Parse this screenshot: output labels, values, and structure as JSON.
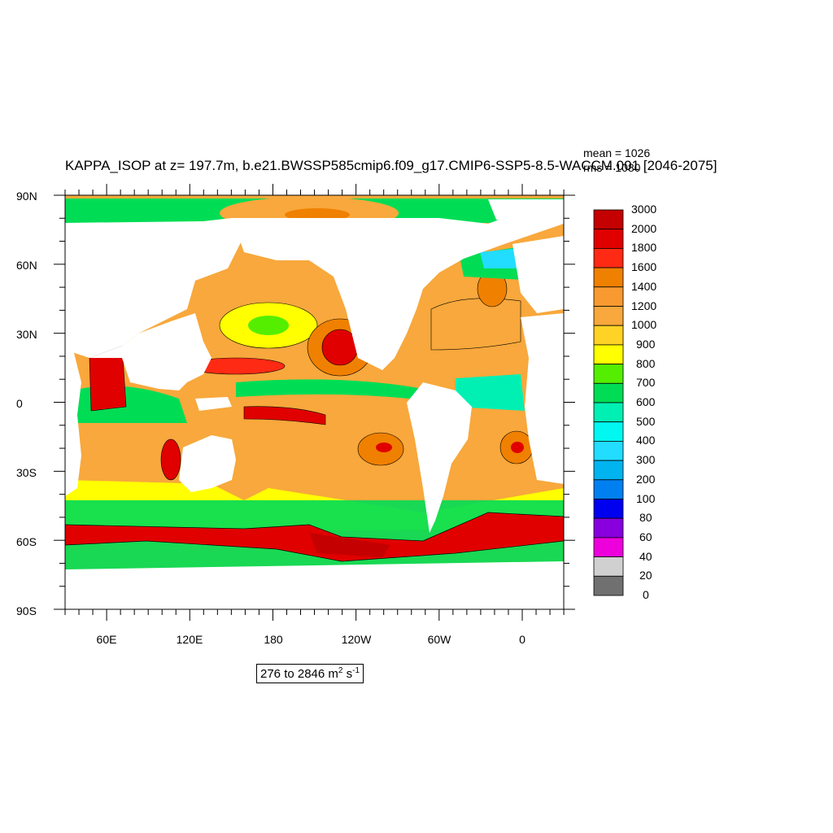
{
  "title": "KAPPA_ISOP at z= 197.7m, b.e21.BWSSP585cmip6.f09_g17.CMIP6-SSP5-8.5-WACCM.001 [2046-2075]",
  "stats": {
    "mean": "mean = 1026",
    "rms": "rms = 1080"
  },
  "range": {
    "prefix": "276 to 2846 m",
    "exp1": "2",
    "mid": " s",
    "exp2": "-1"
  },
  "lat_ticks": [
    "90N",
    "60N",
    "30N",
    "0",
    "30S",
    "60S",
    "90S"
  ],
  "lon_ticks": [
    "60E",
    "120E",
    "180",
    "120W",
    "60W",
    "0"
  ],
  "colorbar": {
    "levels": [
      "3000",
      "2000",
      "1800",
      "1600",
      "1400",
      "1200",
      "1000",
      "900",
      "800",
      "700",
      "600",
      "500",
      "400",
      "300",
      "200",
      "100",
      "80",
      "60",
      "40",
      "20",
      "0"
    ],
    "colors": [
      "#c40000",
      "#e00000",
      "#ff2a14",
      "#f08000",
      "#f89a30",
      "#f8a83c",
      "#ffd226",
      "#ffff00",
      "#55ee00",
      "#00dd55",
      "#00f0b4",
      "#00f8f0",
      "#22ddff",
      "#00b4f0",
      "#0080f0",
      "#0000f0",
      "#8800dd",
      "#ee00dd",
      "#d0d0d0",
      "#707070"
    ]
  }
}
